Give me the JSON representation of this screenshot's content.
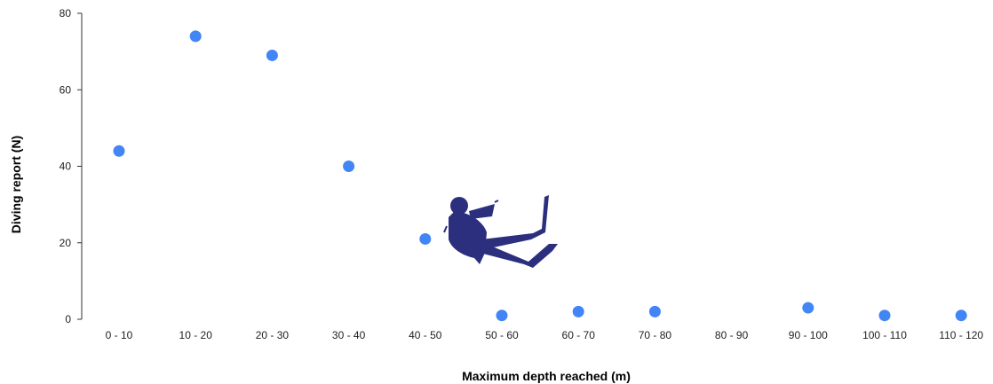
{
  "chart_data": {
    "type": "scatter",
    "categories": [
      "0 - 10",
      "10 - 20",
      "20 - 30",
      "30 - 40",
      "40 - 50",
      "50 - 60",
      "60 - 70",
      "70 - 80",
      "80 - 90",
      "90 - 100",
      "100 - 110",
      "110 - 120"
    ],
    "values": [
      44,
      74,
      69,
      40,
      21,
      1,
      2,
      2,
      null,
      3,
      1,
      1
    ],
    "xlabel": "Maximum depth reached (m)",
    "ylabel": "Diving report  (N)",
    "ylim": [
      0,
      80
    ],
    "yticks": [
      0,
      20,
      40,
      60,
      80
    ],
    "grid": false,
    "point_color": "#4285f4",
    "axis_color": "#333333",
    "decoration_color": "#2b2f7e",
    "decoration_icon": "scuba-diver-icon"
  }
}
